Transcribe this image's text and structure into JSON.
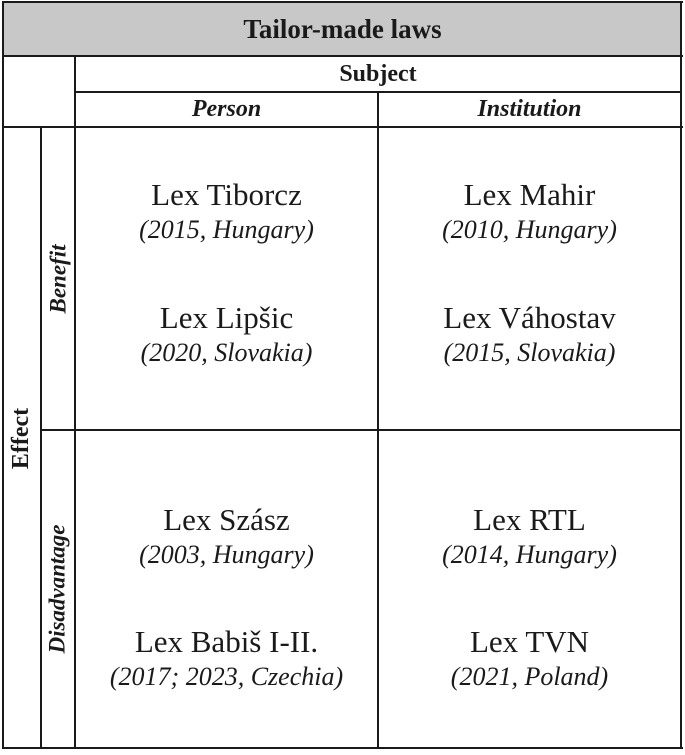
{
  "table": {
    "title": "Tailor-made laws",
    "subject_header": "Subject",
    "effect_header": "Effect",
    "columns": [
      "Person",
      "Institution"
    ],
    "rows": [
      "Benefit",
      "Disadvantage"
    ],
    "cells": {
      "benefit_person": [
        {
          "name": "Lex Tiborcz",
          "meta": "(2015, Hungary)"
        },
        {
          "name": "Lex Lipšic",
          "meta": "(2020, Slovakia)"
        }
      ],
      "benefit_institution": [
        {
          "name": "Lex Mahir",
          "meta": "(2010, Hungary)"
        },
        {
          "name": "Lex Váhostav",
          "meta": "(2015, Slovakia)"
        }
      ],
      "disadvantage_person": [
        {
          "name": "Lex Szász",
          "meta": "(2003, Hungary)"
        },
        {
          "name": "Lex Babiš I-II.",
          "meta": "(2017; 2023, Czechia)"
        }
      ],
      "disadvantage_institution": [
        {
          "name": "Lex RTL",
          "meta": "(2014, Hungary)"
        },
        {
          "name": "Lex TVN",
          "meta": "(2021, Poland)"
        }
      ]
    }
  }
}
